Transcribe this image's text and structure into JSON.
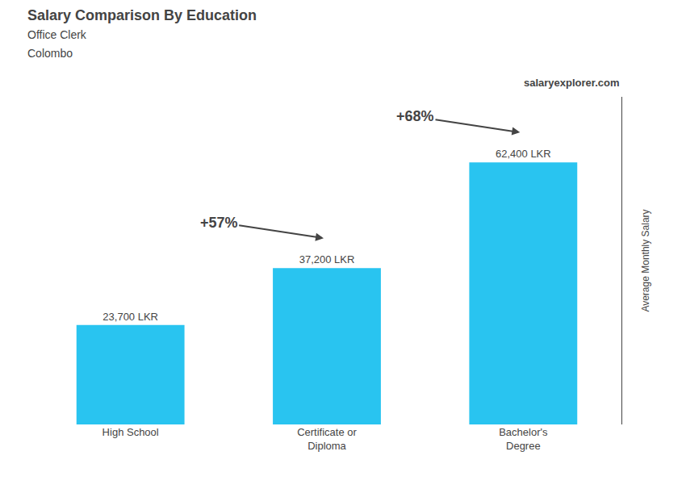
{
  "chart_data": {
    "type": "bar",
    "title": "Salary Comparison By Education",
    "subtitle": [
      "Office Clerk",
      "Colombo"
    ],
    "source": "salaryexplorer.com",
    "ylabel": "Average Monthly Salary",
    "categories": [
      "High School",
      "Certificate or\nDiploma",
      "Bachelor's\nDegree"
    ],
    "values": [
      23700,
      37200,
      62400
    ],
    "value_labels": [
      "23,700 LKR",
      "37,200 LKR",
      "62,400 LKR"
    ],
    "data_labels": true,
    "annotations": [
      "+57%",
      "+68%"
    ],
    "color": "#29c4f0",
    "ylim": [
      0,
      78000
    ],
    "yticks": [],
    "tick_labels": "x",
    "grid": false
  }
}
